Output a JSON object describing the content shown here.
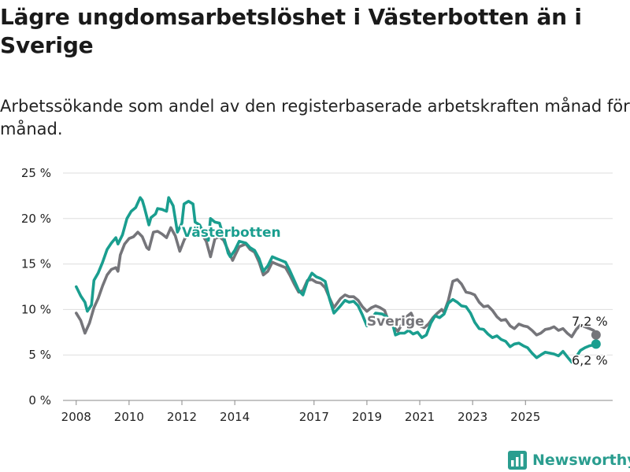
{
  "title": "Lägre ungdomsarbetslöshet i Västerbotten än i Sverige",
  "subtitle": "Arbetssökande som andel av den registerbaserade arbetskraften månad för månad.",
  "brand": {
    "name": "Newsworthy",
    "icon": "newsworthy-logo-icon",
    "color": "#2a9d8f"
  },
  "chart_data": {
    "type": "line",
    "title": "Lägre ungdomsarbetslöshet i Västerbotten än i Sverige",
    "subtitle": "Arbetssökande som andel av den registerbaserade arbetskraften månad för månad.",
    "xlabel": "",
    "ylabel": "",
    "ylim": [
      0,
      25
    ],
    "y_ticks": [
      0,
      5,
      10,
      15,
      20,
      25
    ],
    "y_tick_labels": [
      "0 %",
      "5 %",
      "10 %",
      "15 %",
      "20 %",
      "25 %"
    ],
    "x_ticks": [
      2008,
      2010,
      2012,
      2014,
      2017,
      2019,
      2021,
      2023,
      2025
    ],
    "x_tick_labels": [
      "2008",
      "2010",
      "2012",
      "2014",
      "2017",
      "2019",
      "2021",
      "2023",
      "2025"
    ],
    "grid": "horizontal",
    "x_unit": "year (decimal)",
    "series": [
      {
        "name": "Västerbotten",
        "color": "#1a9e8f",
        "label_position": "inline",
        "end_label": "6,2 %",
        "points": [
          [
            2008.0,
            12.5
          ],
          [
            2008.17,
            11.5
          ],
          [
            2008.33,
            10.8
          ],
          [
            2008.42,
            9.8
          ],
          [
            2008.58,
            10.5
          ],
          [
            2008.67,
            13.2
          ],
          [
            2008.83,
            14.0
          ],
          [
            2009.0,
            15.2
          ],
          [
            2009.17,
            16.6
          ],
          [
            2009.33,
            17.3
          ],
          [
            2009.5,
            17.9
          ],
          [
            2009.58,
            17.2
          ],
          [
            2009.75,
            18.2
          ],
          [
            2009.92,
            20.0
          ],
          [
            2010.08,
            20.8
          ],
          [
            2010.25,
            21.2
          ],
          [
            2010.42,
            22.3
          ],
          [
            2010.5,
            22.0
          ],
          [
            2010.58,
            21.2
          ],
          [
            2010.75,
            19.3
          ],
          [
            2010.83,
            20.1
          ],
          [
            2011.0,
            20.5
          ],
          [
            2011.08,
            21.1
          ],
          [
            2011.25,
            21.0
          ],
          [
            2011.42,
            20.8
          ],
          [
            2011.5,
            22.3
          ],
          [
            2011.67,
            21.4
          ],
          [
            2011.83,
            18.5
          ],
          [
            2012.0,
            19.5
          ],
          [
            2012.08,
            21.6
          ],
          [
            2012.25,
            21.9
          ],
          [
            2012.42,
            21.6
          ],
          [
            2012.5,
            19.6
          ],
          [
            2012.67,
            19.3
          ],
          [
            2012.83,
            18.3
          ],
          [
            2013.0,
            17.6
          ],
          [
            2013.08,
            20.0
          ],
          [
            2013.25,
            19.6
          ],
          [
            2013.42,
            19.5
          ],
          [
            2013.58,
            18.0
          ],
          [
            2013.75,
            16.2
          ],
          [
            2013.83,
            15.8
          ],
          [
            2014.0,
            16.5
          ],
          [
            2014.17,
            17.5
          ],
          [
            2014.42,
            17.3
          ],
          [
            2014.58,
            16.8
          ],
          [
            2014.75,
            16.5
          ],
          [
            2014.92,
            15.6
          ],
          [
            2015.08,
            14.2
          ],
          [
            2015.25,
            14.8
          ],
          [
            2015.42,
            15.8
          ],
          [
            2015.58,
            15.6
          ],
          [
            2015.75,
            15.4
          ],
          [
            2015.92,
            15.2
          ],
          [
            2016.08,
            14.3
          ],
          [
            2016.25,
            13.2
          ],
          [
            2016.42,
            12.1
          ],
          [
            2016.58,
            11.6
          ],
          [
            2016.75,
            13.1
          ],
          [
            2016.92,
            14.0
          ],
          [
            2017.08,
            13.6
          ],
          [
            2017.25,
            13.4
          ],
          [
            2017.42,
            13.1
          ],
          [
            2017.58,
            11.2
          ],
          [
            2017.75,
            9.6
          ],
          [
            2018.0,
            10.4
          ],
          [
            2018.17,
            11.0
          ],
          [
            2018.33,
            10.8
          ],
          [
            2018.5,
            10.9
          ],
          [
            2018.67,
            10.4
          ],
          [
            2018.83,
            9.4
          ],
          [
            2019.0,
            8.2
          ],
          [
            2019.17,
            9.0
          ],
          [
            2019.33,
            9.6
          ],
          [
            2019.58,
            9.5
          ],
          [
            2019.75,
            9.2
          ],
          [
            2020.0,
            8.1
          ],
          [
            2020.08,
            7.2
          ],
          [
            2020.25,
            7.4
          ],
          [
            2020.42,
            7.4
          ],
          [
            2020.58,
            7.7
          ],
          [
            2020.75,
            7.3
          ],
          [
            2020.92,
            7.5
          ],
          [
            2021.08,
            6.9
          ],
          [
            2021.25,
            7.2
          ],
          [
            2021.42,
            8.5
          ],
          [
            2021.58,
            9.3
          ],
          [
            2021.75,
            9.1
          ],
          [
            2021.92,
            9.5
          ],
          [
            2022.08,
            10.7
          ],
          [
            2022.25,
            11.1
          ],
          [
            2022.42,
            10.8
          ],
          [
            2022.58,
            10.4
          ],
          [
            2022.75,
            10.3
          ],
          [
            2022.92,
            9.6
          ],
          [
            2023.08,
            8.6
          ],
          [
            2023.25,
            7.9
          ],
          [
            2023.42,
            7.8
          ],
          [
            2023.58,
            7.3
          ],
          [
            2023.75,
            6.9
          ],
          [
            2023.92,
            7.1
          ],
          [
            2024.08,
            6.7
          ],
          [
            2024.25,
            6.5
          ],
          [
            2024.42,
            5.9
          ],
          [
            2024.58,
            6.2
          ],
          [
            2024.75,
            6.3
          ],
          [
            2024.92,
            6.0
          ],
          [
            2025.08,
            5.8
          ],
          [
            2025.25,
            5.2
          ],
          [
            2025.42,
            4.7
          ],
          [
            2025.58,
            5.0
          ],
          [
            2025.75,
            5.3
          ],
          [
            2025.92,
            5.2
          ],
          [
            2026.08,
            5.1
          ],
          [
            2026.25,
            4.9
          ],
          [
            2026.42,
            5.4
          ],
          [
            2026.58,
            4.8
          ],
          [
            2026.75,
            4.2
          ],
          [
            2026.92,
            4.8
          ],
          [
            2027.08,
            5.5
          ],
          [
            2027.25,
            5.8
          ],
          [
            2027.42,
            6.0
          ],
          [
            2027.58,
            6.1
          ],
          [
            2027.67,
            6.2
          ]
        ]
      },
      {
        "name": "Sverige",
        "color": "#75757a",
        "label_position": "inline",
        "end_label": "7,2 %",
        "points": [
          [
            2008.0,
            9.6
          ],
          [
            2008.17,
            8.8
          ],
          [
            2008.33,
            7.4
          ],
          [
            2008.5,
            8.5
          ],
          [
            2008.67,
            10.2
          ],
          [
            2008.83,
            11.2
          ],
          [
            2009.0,
            12.6
          ],
          [
            2009.17,
            13.8
          ],
          [
            2009.33,
            14.4
          ],
          [
            2009.5,
            14.6
          ],
          [
            2009.58,
            14.2
          ],
          [
            2009.67,
            16.0
          ],
          [
            2009.83,
            17.2
          ],
          [
            2010.0,
            17.8
          ],
          [
            2010.17,
            18.0
          ],
          [
            2010.33,
            18.5
          ],
          [
            2010.5,
            18.0
          ],
          [
            2010.67,
            16.8
          ],
          [
            2010.75,
            16.6
          ],
          [
            2010.92,
            18.5
          ],
          [
            2011.08,
            18.6
          ],
          [
            2011.25,
            18.3
          ],
          [
            2011.42,
            17.9
          ],
          [
            2011.58,
            19.0
          ],
          [
            2011.75,
            18.1
          ],
          [
            2011.92,
            16.4
          ],
          [
            2012.08,
            17.6
          ],
          [
            2012.25,
            18.6
          ],
          [
            2012.42,
            18.9
          ],
          [
            2012.58,
            18.6
          ],
          [
            2012.75,
            18.3
          ],
          [
            2012.92,
            17.5
          ],
          [
            2013.08,
            15.8
          ],
          [
            2013.25,
            17.8
          ],
          [
            2013.42,
            18.0
          ],
          [
            2013.58,
            17.6
          ],
          [
            2013.75,
            16.5
          ],
          [
            2013.92,
            15.4
          ],
          [
            2014.0,
            15.9
          ],
          [
            2014.17,
            16.9
          ],
          [
            2014.42,
            17.2
          ],
          [
            2014.58,
            16.6
          ],
          [
            2014.75,
            16.3
          ],
          [
            2014.92,
            15.2
          ],
          [
            2015.08,
            13.8
          ],
          [
            2015.25,
            14.2
          ],
          [
            2015.42,
            15.2
          ],
          [
            2015.58,
            15.0
          ],
          [
            2015.75,
            14.8
          ],
          [
            2015.92,
            14.6
          ],
          [
            2016.08,
            13.8
          ],
          [
            2016.25,
            12.8
          ],
          [
            2016.42,
            11.9
          ],
          [
            2016.58,
            12.1
          ],
          [
            2016.75,
            13.2
          ],
          [
            2016.92,
            13.3
          ],
          [
            2017.08,
            13.0
          ],
          [
            2017.25,
            12.9
          ],
          [
            2017.42,
            12.4
          ],
          [
            2017.58,
            11.3
          ],
          [
            2017.75,
            10.2
          ],
          [
            2018.0,
            11.2
          ],
          [
            2018.17,
            11.6
          ],
          [
            2018.33,
            11.4
          ],
          [
            2018.5,
            11.4
          ],
          [
            2018.67,
            11.0
          ],
          [
            2018.83,
            10.3
          ],
          [
            2019.0,
            9.8
          ],
          [
            2019.17,
            10.2
          ],
          [
            2019.33,
            10.4
          ],
          [
            2019.5,
            10.2
          ],
          [
            2019.67,
            9.9
          ],
          [
            2019.83,
            8.6
          ],
          [
            2020.0,
            8.1
          ],
          [
            2020.17,
            7.6
          ],
          [
            2020.33,
            8.4
          ],
          [
            2020.5,
            9.2
          ],
          [
            2020.67,
            9.6
          ],
          [
            2020.83,
            8.6
          ],
          [
            2021.0,
            8.2
          ],
          [
            2021.17,
            8.0
          ],
          [
            2021.33,
            8.4
          ],
          [
            2021.5,
            9.1
          ],
          [
            2021.67,
            9.6
          ],
          [
            2021.83,
            10.0
          ],
          [
            2021.92,
            9.7
          ],
          [
            2022.08,
            11.0
          ],
          [
            2022.25,
            13.1
          ],
          [
            2022.42,
            13.3
          ],
          [
            2022.58,
            12.8
          ],
          [
            2022.75,
            11.9
          ],
          [
            2022.92,
            11.8
          ],
          [
            2023.08,
            11.6
          ],
          [
            2023.25,
            10.8
          ],
          [
            2023.42,
            10.3
          ],
          [
            2023.58,
            10.4
          ],
          [
            2023.75,
            9.9
          ],
          [
            2023.92,
            9.2
          ],
          [
            2024.08,
            8.8
          ],
          [
            2024.25,
            8.9
          ],
          [
            2024.42,
            8.2
          ],
          [
            2024.58,
            7.9
          ],
          [
            2024.75,
            8.4
          ],
          [
            2024.92,
            8.2
          ],
          [
            2025.08,
            8.1
          ],
          [
            2025.25,
            7.7
          ],
          [
            2025.42,
            7.2
          ],
          [
            2025.58,
            7.4
          ],
          [
            2025.75,
            7.8
          ],
          [
            2025.92,
            7.9
          ],
          [
            2026.08,
            8.1
          ],
          [
            2026.25,
            7.7
          ],
          [
            2026.42,
            7.9
          ],
          [
            2026.58,
            7.4
          ],
          [
            2026.75,
            7.0
          ],
          [
            2026.92,
            7.8
          ],
          [
            2027.08,
            8.3
          ],
          [
            2027.25,
            8.1
          ],
          [
            2027.42,
            7.9
          ],
          [
            2027.58,
            7.7
          ],
          [
            2027.67,
            7.2
          ]
        ]
      }
    ]
  }
}
